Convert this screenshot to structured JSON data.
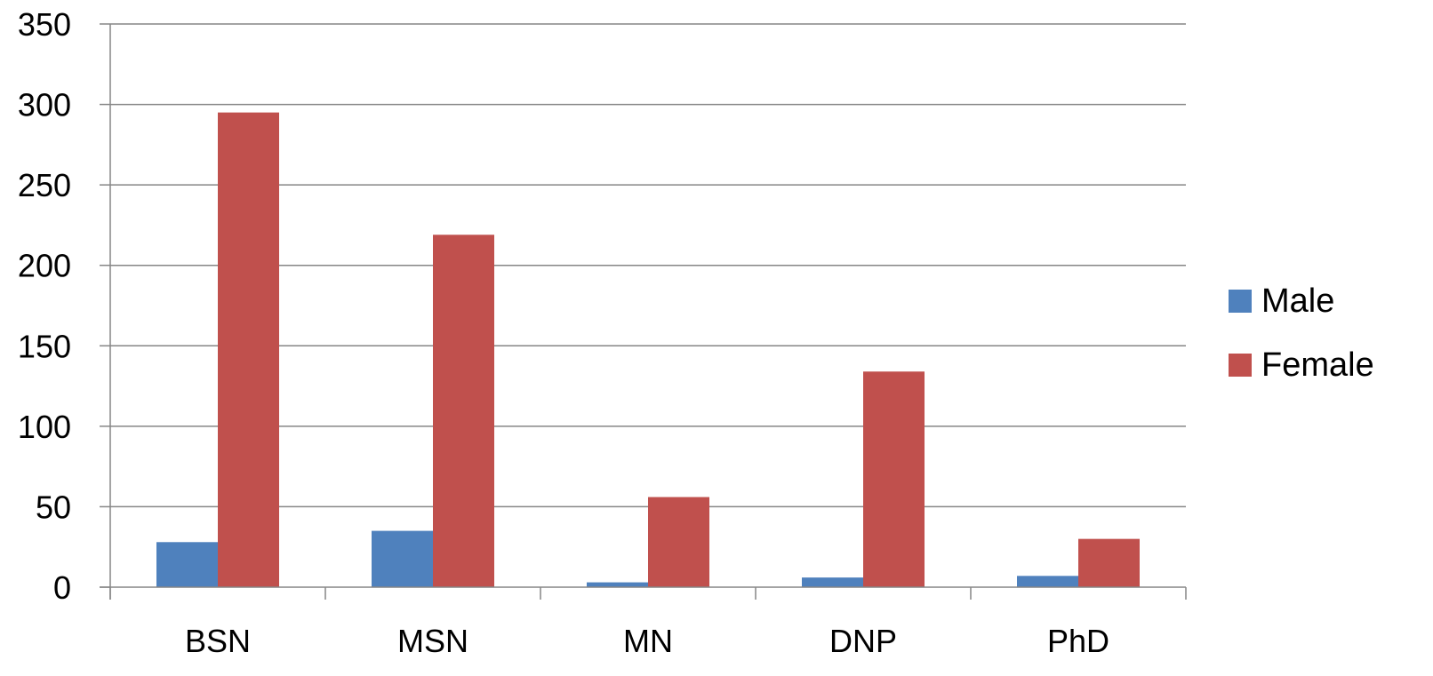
{
  "chart_data": {
    "type": "bar",
    "categories": [
      "BSN",
      "MSN",
      "MN",
      "DNP",
      "PhD"
    ],
    "series": [
      {
        "name": "Male",
        "values": [
          28,
          35,
          3,
          6,
          7
        ],
        "color": "#4F81BD"
      },
      {
        "name": "Female",
        "values": [
          295,
          219,
          56,
          134,
          30
        ],
        "color": "#C0504D"
      }
    ],
    "title": "",
    "xlabel": "",
    "ylabel": "",
    "ylim": [
      0,
      350
    ],
    "yticks": [
      0,
      50,
      100,
      150,
      200,
      250,
      300,
      350
    ],
    "grid": true,
    "legend_position": "right"
  }
}
